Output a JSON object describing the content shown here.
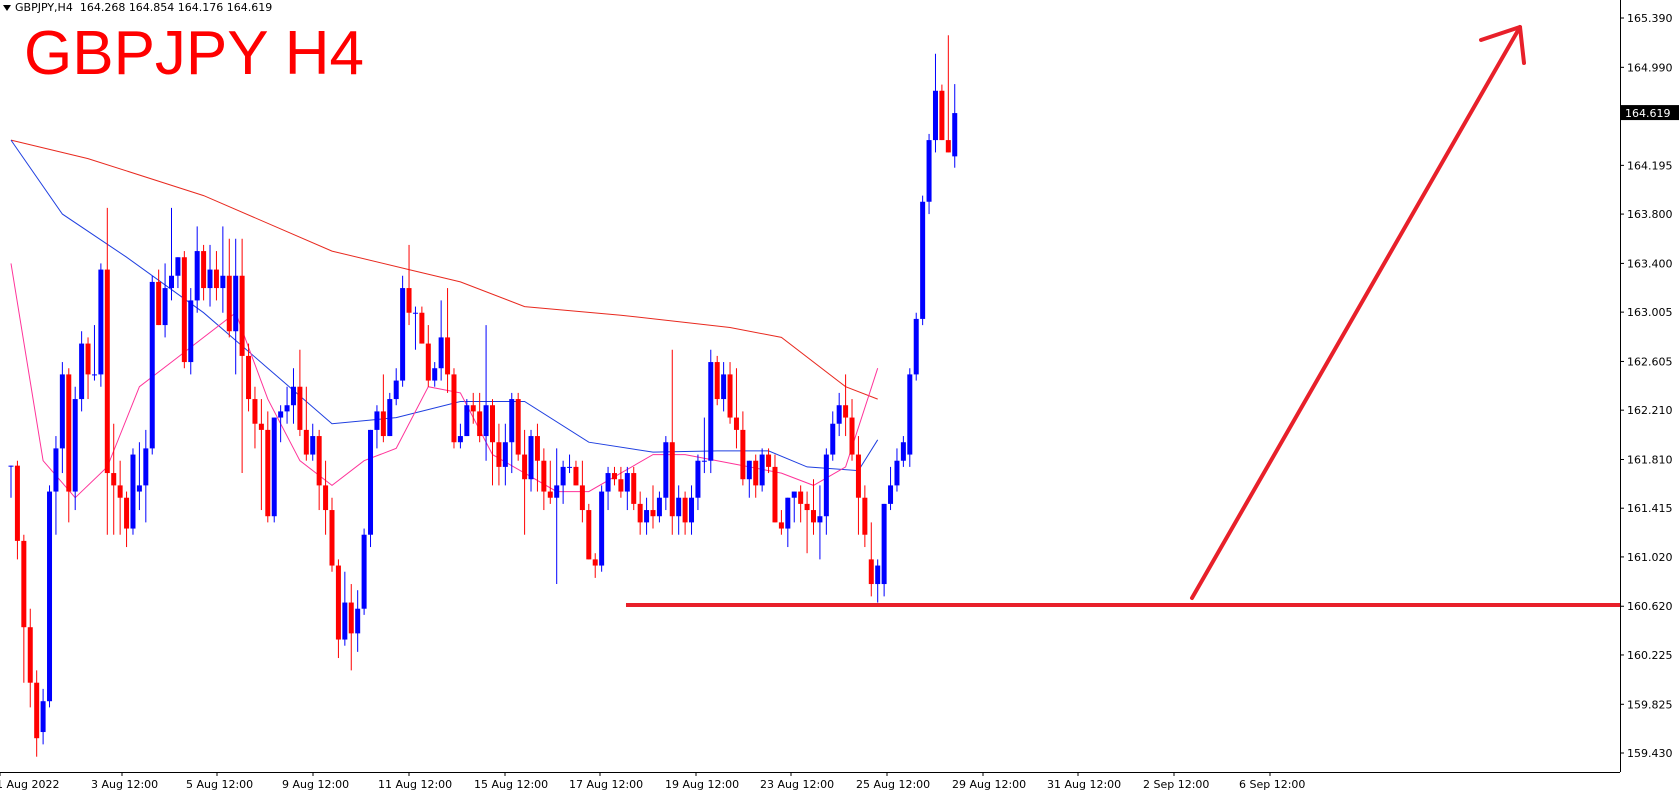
{
  "header": {
    "symbol_timeframe": "GBPJPY,H4",
    "ohlc": "164.268 164.854 164.176 164.619"
  },
  "chart_data": {
    "type": "candlestick",
    "title": "GBPJPY H4",
    "current_price": "164.619",
    "y_ticks": [
      "165.390",
      "164.990",
      "164.195",
      "163.800",
      "163.400",
      "163.005",
      "162.605",
      "162.210",
      "161.810",
      "161.415",
      "161.020",
      "160.620",
      "160.225",
      "159.825",
      "159.430"
    ],
    "x_ticks": [
      "1 Aug 2022",
      "3 Aug 12:00",
      "5 Aug 12:00",
      "9 Aug 12:00",
      "11 Aug 12:00",
      "15 Aug 12:00",
      "17 Aug 12:00",
      "19 Aug 12:00",
      "23 Aug 12:00",
      "25 Aug 12:00",
      "29 Aug 12:00",
      "31 Aug 12:00",
      "2 Sep 12:00",
      "6 Sep 12:00"
    ],
    "ylim": [
      159.3,
      165.55
    ],
    "colors": {
      "bull": "#0000ff",
      "bear": "#ff0000",
      "ma_slow": "#e8291f",
      "ma_mid": "#1f3fe0",
      "ma_fast": "#ff3399",
      "annotation": "#e8202a"
    },
    "support_level": 160.63,
    "candles": [
      [
        161.76,
        161.76,
        161.5,
        161.76
      ],
      [
        161.76,
        161.8,
        161.0,
        161.15
      ],
      [
        161.15,
        161.2,
        160.0,
        160.45
      ],
      [
        160.45,
        160.6,
        159.8,
        160.0
      ],
      [
        160.0,
        160.1,
        159.4,
        159.55
      ],
      [
        159.6,
        159.95,
        159.5,
        159.85
      ],
      [
        159.85,
        161.6,
        159.8,
        161.55
      ],
      [
        161.55,
        162.0,
        161.2,
        161.9
      ],
      [
        161.9,
        162.6,
        161.7,
        162.5
      ],
      [
        162.5,
        162.55,
        161.3,
        161.55
      ],
      [
        161.55,
        162.4,
        161.4,
        162.3
      ],
      [
        162.3,
        162.85,
        162.2,
        162.75
      ],
      [
        162.75,
        162.8,
        162.3,
        162.5
      ],
      [
        162.5,
        162.9,
        162.45,
        162.5
      ],
      [
        162.5,
        163.4,
        162.4,
        163.35
      ],
      [
        163.35,
        163.85,
        161.2,
        161.7
      ],
      [
        161.7,
        162.1,
        161.2,
        161.6
      ],
      [
        161.6,
        161.8,
        161.2,
        161.5
      ],
      [
        161.5,
        161.55,
        161.1,
        161.25
      ],
      [
        161.25,
        161.9,
        161.2,
        161.85
      ],
      [
        161.55,
        161.95,
        161.4,
        161.6
      ],
      [
        161.6,
        162.05,
        161.3,
        161.9
      ],
      [
        161.9,
        163.3,
        161.85,
        163.25
      ],
      [
        163.25,
        163.35,
        162.9,
        162.9
      ],
      [
        162.9,
        163.4,
        162.8,
        163.2
      ],
      [
        163.2,
        163.85,
        163.1,
        163.3
      ],
      [
        163.3,
        163.45,
        163.2,
        163.45
      ],
      [
        163.45,
        163.5,
        162.55,
        162.6
      ],
      [
        162.6,
        163.2,
        162.5,
        163.1
      ],
      [
        163.1,
        163.7,
        163.0,
        163.5
      ],
      [
        163.5,
        163.55,
        163.1,
        163.2
      ],
      [
        163.2,
        163.55,
        163.05,
        163.35
      ],
      [
        163.35,
        163.5,
        163.1,
        163.2
      ],
      [
        163.2,
        163.7,
        163.0,
        163.3
      ],
      [
        163.3,
        163.6,
        162.8,
        162.85
      ],
      [
        162.85,
        163.6,
        162.5,
        163.3
      ],
      [
        163.3,
        163.6,
        161.7,
        162.65
      ],
      [
        162.65,
        162.75,
        162.2,
        162.3
      ],
      [
        162.3,
        162.4,
        161.9,
        162.1
      ],
      [
        162.1,
        162.3,
        161.4,
        162.05
      ],
      [
        162.05,
        162.2,
        161.3,
        161.35
      ],
      [
        161.35,
        162.15,
        161.3,
        162.15
      ],
      [
        162.15,
        162.25,
        161.95,
        162.2
      ],
      [
        162.2,
        162.4,
        162.1,
        162.25
      ],
      [
        162.25,
        162.55,
        162.1,
        162.4
      ],
      [
        162.4,
        162.7,
        162.0,
        162.05
      ],
      [
        162.05,
        162.4,
        161.8,
        161.85
      ],
      [
        161.85,
        162.1,
        161.8,
        162.0
      ],
      [
        162.0,
        162.05,
        161.4,
        161.6
      ],
      [
        161.6,
        161.8,
        161.2,
        161.4
      ],
      [
        161.4,
        161.5,
        160.9,
        160.95
      ],
      [
        160.95,
        161.0,
        160.2,
        160.35
      ],
      [
        160.35,
        160.9,
        160.3,
        160.65
      ],
      [
        160.65,
        160.8,
        160.1,
        160.4
      ],
      [
        160.4,
        160.75,
        160.25,
        160.6
      ],
      [
        160.6,
        161.25,
        160.55,
        161.2
      ],
      [
        161.2,
        162.05,
        161.1,
        162.05
      ],
      [
        162.05,
        162.25,
        161.9,
        162.2
      ],
      [
        162.2,
        162.5,
        161.95,
        162.0
      ],
      [
        162.0,
        162.35,
        162.0,
        162.3
      ],
      [
        162.3,
        162.55,
        162.25,
        162.45
      ],
      [
        162.45,
        163.3,
        162.4,
        163.2
      ],
      [
        163.2,
        163.55,
        162.9,
        163.0
      ],
      [
        163.0,
        163.05,
        162.7,
        163.0
      ],
      [
        163.0,
        163.05,
        162.75,
        162.75
      ],
      [
        162.75,
        162.9,
        162.4,
        162.45
      ],
      [
        162.45,
        162.6,
        162.4,
        162.55
      ],
      [
        162.55,
        163.1,
        162.45,
        162.8
      ],
      [
        162.8,
        163.2,
        162.35,
        162.5
      ],
      [
        162.5,
        162.55,
        161.9,
        161.95
      ],
      [
        161.95,
        162.1,
        161.9,
        162.0
      ],
      [
        162.0,
        162.3,
        162.0,
        162.25
      ],
      [
        162.25,
        162.35,
        162.1,
        162.2
      ],
      [
        162.2,
        162.35,
        161.95,
        162.0
      ],
      [
        162.0,
        162.9,
        161.8,
        162.25
      ],
      [
        162.25,
        162.3,
        161.6,
        161.95
      ],
      [
        161.95,
        162.1,
        161.6,
        161.75
      ],
      [
        161.75,
        162.1,
        161.6,
        161.95
      ],
      [
        161.95,
        162.35,
        161.7,
        162.3
      ],
      [
        162.3,
        162.35,
        161.8,
        161.85
      ],
      [
        161.85,
        162.05,
        161.2,
        161.65
      ],
      [
        161.65,
        162.05,
        161.55,
        162.0
      ],
      [
        162.0,
        162.1,
        161.55,
        161.8
      ],
      [
        161.8,
        161.9,
        161.4,
        161.55
      ],
      [
        161.55,
        161.8,
        161.45,
        161.5
      ],
      [
        161.5,
        161.9,
        160.8,
        161.6
      ],
      [
        161.6,
        161.8,
        161.45,
        161.75
      ],
      [
        161.75,
        161.85,
        161.7,
        161.75
      ],
      [
        161.75,
        161.8,
        161.6,
        161.6
      ],
      [
        161.6,
        161.8,
        161.3,
        161.4
      ],
      [
        161.4,
        161.45,
        161.0,
        161.0
      ],
      [
        161.0,
        161.05,
        160.85,
        160.95
      ],
      [
        160.95,
        161.6,
        160.9,
        161.55
      ],
      [
        161.55,
        161.75,
        161.4,
        161.7
      ],
      [
        161.7,
        161.75,
        161.6,
        161.65
      ],
      [
        161.65,
        161.75,
        161.5,
        161.55
      ],
      [
        161.55,
        161.75,
        161.4,
        161.7
      ],
      [
        161.7,
        161.75,
        161.4,
        161.45
      ],
      [
        161.45,
        161.55,
        161.2,
        161.3
      ],
      [
        161.3,
        161.5,
        161.2,
        161.4
      ],
      [
        161.4,
        161.6,
        161.25,
        161.35
      ],
      [
        161.35,
        161.55,
        161.3,
        161.5
      ],
      [
        161.5,
        162.0,
        161.4,
        161.95
      ],
      [
        161.95,
        162.7,
        161.2,
        161.35
      ],
      [
        161.35,
        161.6,
        161.2,
        161.5
      ],
      [
        161.5,
        161.55,
        161.2,
        161.3
      ],
      [
        161.3,
        161.6,
        161.2,
        161.5
      ],
      [
        161.5,
        161.85,
        161.4,
        161.8
      ],
      [
        161.8,
        162.15,
        161.7,
        161.8
      ],
      [
        161.8,
        162.7,
        161.7,
        162.6
      ],
      [
        162.6,
        162.65,
        162.25,
        162.3
      ],
      [
        162.3,
        162.6,
        162.2,
        162.5
      ],
      [
        162.5,
        162.6,
        162.1,
        162.15
      ],
      [
        162.15,
        162.55,
        161.9,
        162.05
      ],
      [
        162.05,
        162.2,
        161.6,
        161.65
      ],
      [
        161.65,
        161.8,
        161.5,
        161.8
      ],
      [
        161.8,
        161.85,
        161.5,
        161.6
      ],
      [
        161.6,
        161.9,
        161.55,
        161.85
      ],
      [
        161.85,
        161.9,
        161.7,
        161.75
      ],
      [
        161.75,
        161.85,
        161.3,
        161.3
      ],
      [
        161.3,
        161.4,
        161.2,
        161.25
      ],
      [
        161.25,
        161.5,
        161.1,
        161.5
      ],
      [
        161.5,
        161.55,
        161.3,
        161.55
      ],
      [
        161.55,
        161.6,
        161.3,
        161.45
      ],
      [
        161.45,
        161.55,
        161.05,
        161.4
      ],
      [
        161.4,
        161.65,
        161.2,
        161.3
      ],
      [
        161.3,
        161.6,
        161.0,
        161.35
      ],
      [
        161.35,
        161.9,
        161.2,
        161.85
      ],
      [
        161.85,
        162.2,
        161.8,
        162.1
      ],
      [
        162.1,
        162.35,
        162.0,
        162.25
      ],
      [
        162.25,
        162.5,
        162.0,
        162.15
      ],
      [
        162.15,
        162.3,
        161.8,
        161.85
      ],
      [
        161.85,
        162.0,
        161.2,
        161.5
      ],
      [
        161.5,
        161.6,
        161.1,
        161.2
      ],
      [
        161.0,
        161.3,
        160.7,
        160.8
      ],
      [
        160.8,
        161.0,
        160.65,
        160.95
      ],
      [
        160.8,
        161.45,
        160.7,
        161.45
      ],
      [
        161.45,
        161.75,
        161.4,
        161.6
      ],
      [
        161.6,
        161.9,
        161.55,
        161.8
      ],
      [
        161.8,
        162.0,
        161.75,
        161.95
      ],
      [
        161.85,
        162.55,
        161.75,
        162.5
      ],
      [
        162.5,
        163.0,
        162.45,
        162.95
      ],
      [
        162.95,
        163.95,
        162.9,
        163.9
      ],
      [
        163.9,
        164.45,
        163.8,
        164.4
      ],
      [
        164.4,
        165.1,
        164.3,
        164.8
      ],
      [
        164.8,
        164.85,
        164.4,
        164.4
      ],
      [
        164.4,
        165.25,
        164.3,
        164.3
      ],
      [
        164.268,
        164.854,
        164.176,
        164.619
      ]
    ],
    "ma_slow": [
      [
        0,
        164.4
      ],
      [
        12,
        164.25
      ],
      [
        30,
        163.95
      ],
      [
        50,
        163.5
      ],
      [
        62,
        163.35
      ],
      [
        70,
        163.25
      ],
      [
        80,
        163.05
      ],
      [
        95,
        162.98
      ],
      [
        112,
        162.88
      ],
      [
        120,
        162.8
      ],
      [
        130,
        162.4
      ],
      [
        135,
        162.3
      ]
    ],
    "ma_mid": [
      [
        0,
        164.4
      ],
      [
        8,
        163.8
      ],
      [
        18,
        163.45
      ],
      [
        30,
        163.0
      ],
      [
        40,
        162.55
      ],
      [
        50,
        162.1
      ],
      [
        60,
        162.15
      ],
      [
        70,
        162.28
      ],
      [
        80,
        162.28
      ],
      [
        90,
        161.95
      ],
      [
        100,
        161.87
      ],
      [
        110,
        161.88
      ],
      [
        118,
        161.88
      ],
      [
        124,
        161.75
      ],
      [
        132,
        161.72
      ],
      [
        135,
        161.97
      ]
    ],
    "ma_fast": [
      [
        0,
        163.4
      ],
      [
        5,
        161.8
      ],
      [
        10,
        161.5
      ],
      [
        15,
        161.75
      ],
      [
        20,
        162.4
      ],
      [
        25,
        162.6
      ],
      [
        30,
        162.8
      ],
      [
        35,
        163.0
      ],
      [
        40,
        162.3
      ],
      [
        45,
        161.8
      ],
      [
        50,
        161.6
      ],
      [
        55,
        161.8
      ],
      [
        60,
        161.9
      ],
      [
        65,
        162.4
      ],
      [
        70,
        162.35
      ],
      [
        75,
        161.85
      ],
      [
        80,
        161.7
      ],
      [
        85,
        161.55
      ],
      [
        90,
        161.55
      ],
      [
        95,
        161.7
      ],
      [
        100,
        161.85
      ],
      [
        105,
        161.85
      ],
      [
        110,
        161.8
      ],
      [
        115,
        161.75
      ],
      [
        120,
        161.7
      ],
      [
        125,
        161.6
      ],
      [
        130,
        161.75
      ],
      [
        135,
        162.55
      ]
    ]
  }
}
